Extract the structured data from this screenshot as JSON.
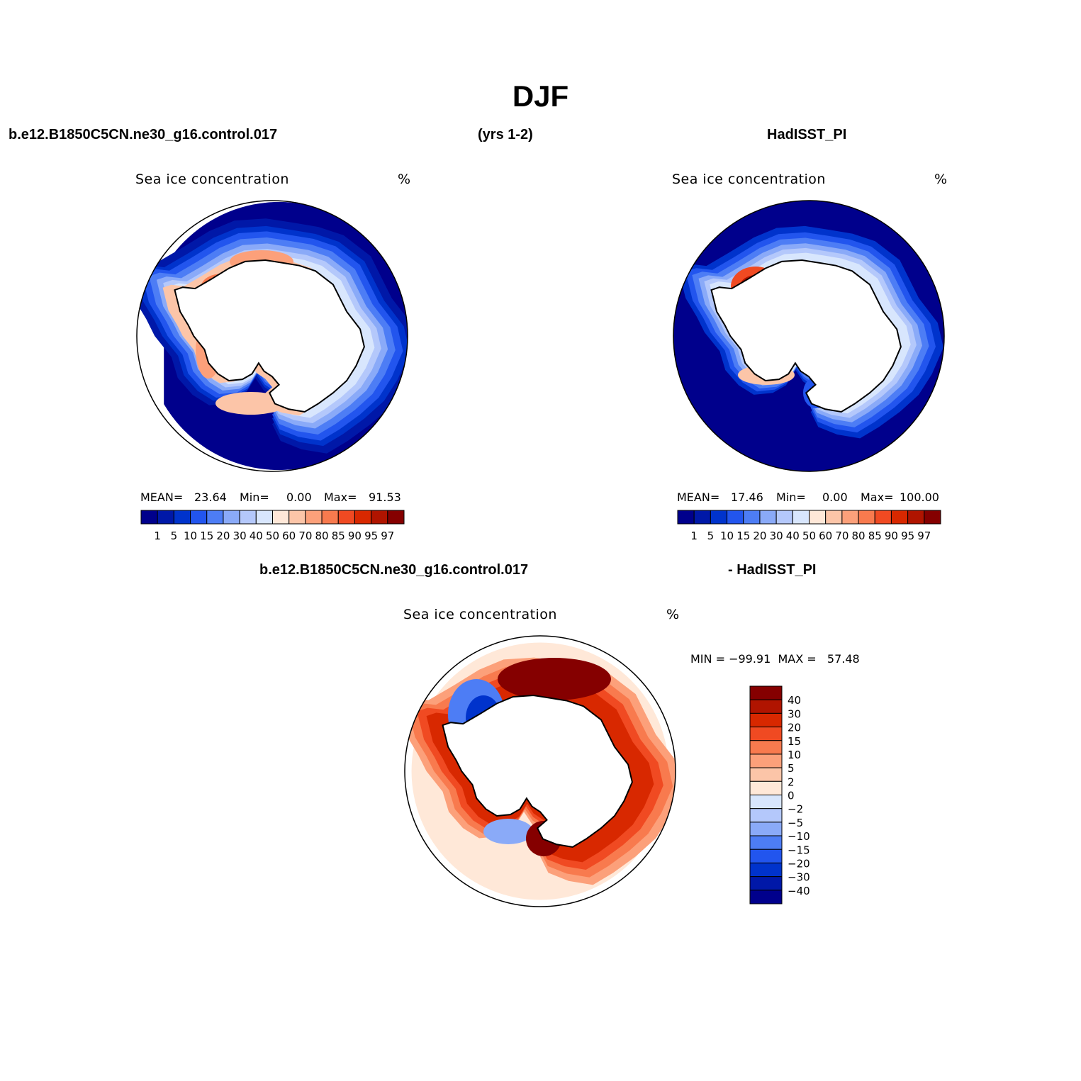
{
  "figure": {
    "title": "DJF",
    "left_header": "b.e12.B1850C5CN.ne30_g16.control.017",
    "center_header": "(yrs 1-2)",
    "right_header": "HadISST_PI",
    "diff_left_header": "b.e12.B1850C5CN.ne30_g16.control.017",
    "diff_right_header": "- HadISST_PI"
  },
  "colors": {
    "abs_scale": [
      "#00008c",
      "#0018a8",
      "#0033cc",
      "#2255ee",
      "#4d7df5",
      "#8aaaf8",
      "#b4c8fb",
      "#d8e6fd",
      "#ffe8d8",
      "#fcc5a8",
      "#fca07a",
      "#f87a4e",
      "#f04a22",
      "#d82800",
      "#b01400",
      "#850000"
    ],
    "diff_scale": [
      "#00008c",
      "#0018a8",
      "#0033cc",
      "#2255ee",
      "#4d7df5",
      "#8aaaf8",
      "#b4c8fb",
      "#d8e6fd",
      "#ffe8d8",
      "#fcc5a8",
      "#fca07a",
      "#f87a4e",
      "#f04a22",
      "#d82800",
      "#b01400",
      "#850000"
    ]
  },
  "chart_data": [
    {
      "type": "heatmap",
      "id": "model",
      "projection": "south-polar stereographic",
      "panel_title": "Sea ice concentration",
      "units": "%",
      "stats": {
        "mean_label": "MEAN=",
        "mean": "23.64",
        "min_label": "Min=",
        "min": "0.00",
        "max_label": "Max=",
        "max": "91.53"
      },
      "levels": [
        "1",
        "5",
        "10",
        "15",
        "20",
        "30",
        "40",
        "50",
        "60",
        "70",
        "80",
        "85",
        "90",
        "95",
        "97"
      ],
      "legend_position": "bottom"
    },
    {
      "type": "heatmap",
      "id": "obs",
      "projection": "south-polar stereographic",
      "panel_title": "Sea ice concentration",
      "units": "%",
      "stats": {
        "mean_label": "MEAN=",
        "mean": "17.46",
        "min_label": "Min=",
        "min": "0.00",
        "max_label": "Max=",
        "max": "100.00"
      },
      "levels": [
        "1",
        "5",
        "10",
        "15",
        "20",
        "30",
        "40",
        "50",
        "60",
        "70",
        "80",
        "85",
        "90",
        "95",
        "97"
      ],
      "legend_position": "bottom"
    },
    {
      "type": "heatmap",
      "id": "diff",
      "projection": "south-polar stereographic",
      "panel_title": "Sea ice concentration",
      "units": "%",
      "minmax_text": "MIN = −99.91  MAX =   57.48",
      "levels": [
        "40",
        "30",
        "20",
        "15",
        "10",
        "5",
        "2",
        "0",
        "−2",
        "−5",
        "−10",
        "−15",
        "−20",
        "−30",
        "−40"
      ],
      "legend_position": "right"
    }
  ]
}
